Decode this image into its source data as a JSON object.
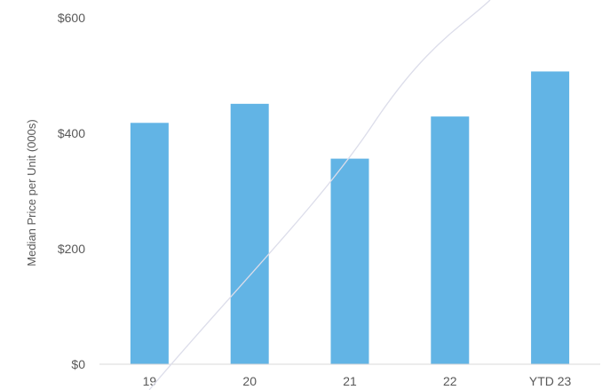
{
  "chart_data": {
    "type": "bar",
    "title": "",
    "xlabel": "",
    "ylabel": "Median Price per Unit (000s)",
    "categories": [
      "19",
      "20",
      "21",
      "22",
      "YTD 23"
    ],
    "values": [
      418,
      451,
      356,
      429,
      507
    ],
    "ylim": [
      0,
      600
    ],
    "y_ticks": [
      "$0",
      "$200",
      "$400",
      "$600"
    ],
    "y_tick_values": [
      0,
      200,
      400,
      600
    ],
    "grid": false,
    "legend": "none",
    "colors": {
      "bar": "#62B4E5",
      "axis": "#D9D9D9",
      "text": "#595959",
      "overlay_line": "#DCDDEA"
    }
  }
}
